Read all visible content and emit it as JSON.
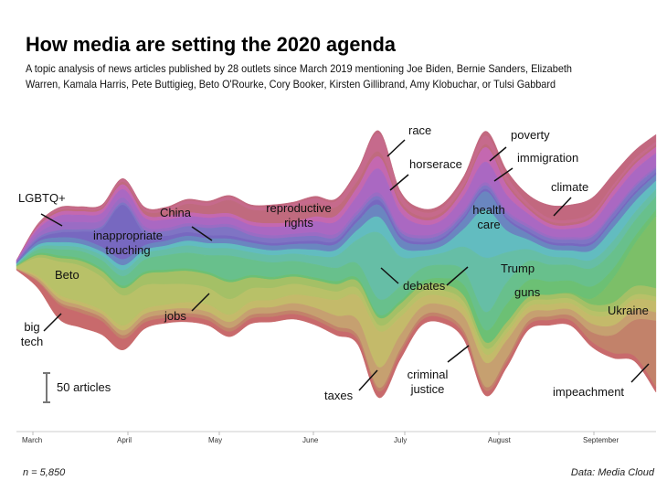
{
  "title": "How media are setting the 2020 agenda",
  "subtitle_lines": [
    "A topic analysis of news articles published by 28 outlets since March 2019 mentioning Joe Biden, Bernie Sanders, Elizabeth",
    "Warren, Kamala Harris, Pete Buttigieg, Beto O'Rourke, Cory Booker, Kirsten Gillibrand, Amy Klobuchar, or Tulsi Gabbard"
  ],
  "footer": {
    "n_label": "n = 5,850",
    "source": "Data: Media Cloud"
  },
  "scale_label": "50 articles",
  "chart_data": {
    "type": "area",
    "subtype": "streamgraph",
    "x_unit": "week",
    "x": [
      "2019-02-25",
      "2019-03-04",
      "2019-03-11",
      "2019-03-18",
      "2019-03-25",
      "2019-04-01",
      "2019-04-08",
      "2019-04-15",
      "2019-04-22",
      "2019-04-29",
      "2019-05-06",
      "2019-05-13",
      "2019-05-20",
      "2019-05-27",
      "2019-06-03",
      "2019-06-10",
      "2019-06-17",
      "2019-06-24",
      "2019-07-01",
      "2019-07-08",
      "2019-07-15",
      "2019-07-22",
      "2019-07-29",
      "2019-08-05",
      "2019-08-12",
      "2019-08-19",
      "2019-08-26",
      "2019-09-02",
      "2019-09-09",
      "2019-09-16",
      "2019-09-23"
    ],
    "x_ticks": [
      "March",
      "April",
      "May",
      "June",
      "July",
      "August",
      "September"
    ],
    "y_unit": "articles",
    "scale_bar_value": 50,
    "grid": false,
    "legend": "none (direct labels)",
    "series": [
      {
        "name": "climate",
        "color": "#c2687f",
        "values": [
          0,
          1,
          2,
          2,
          2,
          2,
          2,
          3,
          3,
          3,
          3,
          3,
          3,
          3,
          4,
          4,
          4,
          5,
          5,
          6,
          6,
          6,
          8,
          10,
          14,
          22,
          25,
          24,
          18,
          14,
          12
        ]
      },
      {
        "name": "race",
        "color": "#c66a8c",
        "values": [
          0,
          2,
          3,
          3,
          3,
          4,
          4,
          4,
          5,
          5,
          5,
          5,
          6,
          6,
          8,
          10,
          15,
          30,
          12,
          8,
          8,
          10,
          14,
          10,
          6,
          5,
          5,
          5,
          5,
          5,
          5
        ]
      },
      {
        "name": "reproductive rights",
        "color": "#c06a7e",
        "values": [
          0,
          2,
          3,
          3,
          3,
          4,
          6,
          8,
          14,
          14,
          22,
          20,
          22,
          24,
          22,
          14,
          10,
          8,
          6,
          5,
          5,
          5,
          5,
          5,
          4,
          4,
          4,
          4,
          4,
          4,
          4
        ]
      },
      {
        "name": "poverty",
        "color": "#c468b0",
        "values": [
          1,
          4,
          6,
          6,
          6,
          8,
          6,
          6,
          6,
          6,
          6,
          6,
          6,
          6,
          8,
          10,
          14,
          20,
          12,
          8,
          8,
          12,
          24,
          16,
          8,
          6,
          6,
          8,
          10,
          10,
          10
        ]
      },
      {
        "name": "horserace",
        "color": "#aa68c2",
        "values": [
          1,
          8,
          12,
          12,
          12,
          14,
          14,
          14,
          12,
          12,
          12,
          12,
          14,
          14,
          18,
          20,
          25,
          40,
          28,
          18,
          18,
          24,
          34,
          26,
          18,
          14,
          14,
          20,
          24,
          24,
          22
        ]
      },
      {
        "name": "LGBTQ+",
        "color": "#9a6cc4",
        "values": [
          1,
          6,
          12,
          12,
          10,
          8,
          6,
          5,
          5,
          5,
          5,
          5,
          5,
          5,
          6,
          6,
          6,
          6,
          5,
          5,
          5,
          5,
          5,
          5,
          5,
          4,
          4,
          4,
          4,
          4,
          4
        ]
      },
      {
        "name": "China",
        "color": "#7f74c4",
        "values": [
          1,
          3,
          4,
          4,
          4,
          4,
          6,
          8,
          10,
          12,
          14,
          8,
          8,
          8,
          8,
          6,
          6,
          6,
          6,
          6,
          6,
          6,
          6,
          6,
          6,
          6,
          6,
          8,
          8,
          8,
          6
        ]
      },
      {
        "name": "inappropriate touching",
        "color": "#7768c0",
        "values": [
          1,
          4,
          8,
          12,
          30,
          90,
          20,
          8,
          6,
          5,
          5,
          4,
          4,
          4,
          5,
          5,
          6,
          8,
          5,
          4,
          4,
          4,
          4,
          4,
          4,
          4,
          4,
          4,
          4,
          4,
          4
        ]
      },
      {
        "name": "immigration",
        "color": "#6a86c0",
        "values": [
          1,
          5,
          8,
          8,
          8,
          10,
          8,
          8,
          8,
          8,
          8,
          8,
          8,
          8,
          10,
          10,
          14,
          20,
          14,
          10,
          10,
          16,
          30,
          18,
          10,
          8,
          8,
          10,
          12,
          12,
          10
        ]
      },
      {
        "name": "health care",
        "color": "#62bcc0",
        "values": [
          1,
          4,
          6,
          6,
          6,
          8,
          6,
          6,
          8,
          8,
          8,
          8,
          8,
          8,
          10,
          10,
          16,
          26,
          16,
          10,
          12,
          30,
          80,
          36,
          16,
          12,
          12,
          16,
          22,
          18,
          14
        ]
      },
      {
        "name": "debates",
        "color": "#66bea6",
        "values": [
          1,
          4,
          6,
          6,
          8,
          10,
          10,
          10,
          12,
          12,
          12,
          12,
          12,
          12,
          14,
          20,
          40,
          110,
          50,
          20,
          20,
          40,
          90,
          50,
          20,
          14,
          12,
          14,
          16,
          14,
          12
        ]
      },
      {
        "name": "Trump",
        "color": "#68c08c",
        "values": [
          1,
          6,
          10,
          12,
          14,
          16,
          20,
          24,
          26,
          28,
          40,
          26,
          24,
          22,
          22,
          22,
          24,
          26,
          24,
          22,
          22,
          24,
          30,
          36,
          32,
          28,
          26,
          30,
          30,
          26,
          22
        ]
      },
      {
        "name": "guns",
        "color": "#6cc074",
        "values": [
          1,
          3,
          4,
          4,
          4,
          4,
          4,
          4,
          4,
          4,
          4,
          4,
          4,
          4,
          4,
          5,
          5,
          5,
          5,
          6,
          10,
          18,
          20,
          30,
          28,
          22,
          20,
          20,
          16,
          12,
          10
        ]
      },
      {
        "name": "Ukraine",
        "color": "#7cbf68",
        "values": [
          0,
          0,
          0,
          0,
          0,
          0,
          0,
          0,
          0,
          0,
          0,
          0,
          0,
          0,
          0,
          0,
          0,
          0,
          0,
          0,
          0,
          0,
          0,
          0,
          0,
          0,
          2,
          10,
          40,
          70,
          120
        ]
      },
      {
        "name": "jobs",
        "color": "#a4c066",
        "values": [
          1,
          4,
          6,
          8,
          10,
          12,
          18,
          20,
          22,
          22,
          28,
          18,
          14,
          12,
          12,
          12,
          12,
          12,
          12,
          10,
          10,
          10,
          10,
          10,
          8,
          8,
          8,
          10,
          12,
          14,
          14
        ]
      },
      {
        "name": "Beto",
        "color": "#b8c168",
        "values": [
          2,
          30,
          55,
          60,
          55,
          50,
          40,
          34,
          30,
          28,
          26,
          22,
          20,
          18,
          16,
          14,
          12,
          10,
          10,
          10,
          10,
          10,
          10,
          8,
          8,
          8,
          8,
          8,
          8,
          8,
          8
        ]
      },
      {
        "name": "taxes",
        "color": "#c4ba6a",
        "values": [
          1,
          4,
          6,
          6,
          6,
          8,
          8,
          8,
          10,
          12,
          12,
          12,
          12,
          14,
          18,
          26,
          40,
          60,
          30,
          16,
          14,
          14,
          14,
          12,
          10,
          10,
          10,
          14,
          18,
          18,
          18
        ]
      },
      {
        "name": "criminal justice",
        "color": "#c6a070",
        "values": [
          1,
          4,
          6,
          6,
          6,
          8,
          8,
          8,
          8,
          8,
          10,
          10,
          10,
          12,
          14,
          18,
          26,
          34,
          24,
          16,
          16,
          24,
          40,
          30,
          14,
          10,
          10,
          14,
          16,
          16,
          14
        ]
      },
      {
        "name": "impeachment",
        "color": "#c2826a",
        "values": [
          0,
          2,
          4,
          6,
          6,
          6,
          6,
          6,
          6,
          6,
          6,
          6,
          6,
          6,
          6,
          6,
          6,
          6,
          6,
          6,
          6,
          6,
          6,
          6,
          6,
          6,
          8,
          16,
          30,
          60,
          110
        ]
      },
      {
        "name": "big tech",
        "color": "#c86a6c",
        "values": [
          1,
          10,
          24,
          24,
          22,
          18,
          10,
          8,
          8,
          8,
          8,
          8,
          8,
          8,
          8,
          8,
          8,
          10,
          10,
          8,
          8,
          8,
          8,
          8,
          8,
          8,
          8,
          8,
          8,
          8,
          8
        ]
      }
    ],
    "annotations": [
      {
        "text": [
          "LGBTQ+"
        ]
      },
      {
        "text": [
          "inappropriate",
          "touching"
        ]
      },
      {
        "text": [
          "China"
        ]
      },
      {
        "text": [
          "reproductive",
          "rights"
        ]
      },
      {
        "text": [
          "race"
        ]
      },
      {
        "text": [
          "horserace"
        ]
      },
      {
        "text": [
          "poverty"
        ]
      },
      {
        "text": [
          "immigration"
        ]
      },
      {
        "text": [
          "health",
          "care"
        ]
      },
      {
        "text": [
          "climate"
        ]
      },
      {
        "text": [
          "debates"
        ]
      },
      {
        "text": [
          "Trump"
        ]
      },
      {
        "text": [
          "guns"
        ]
      },
      {
        "text": [
          "Ukraine"
        ]
      },
      {
        "text": [
          "impeachment"
        ]
      },
      {
        "text": [
          "criminal",
          "justice"
        ]
      },
      {
        "text": [
          "taxes"
        ]
      },
      {
        "text": [
          "jobs"
        ]
      },
      {
        "text": [
          "Beto"
        ]
      },
      {
        "text": [
          "big",
          "tech"
        ]
      }
    ]
  }
}
